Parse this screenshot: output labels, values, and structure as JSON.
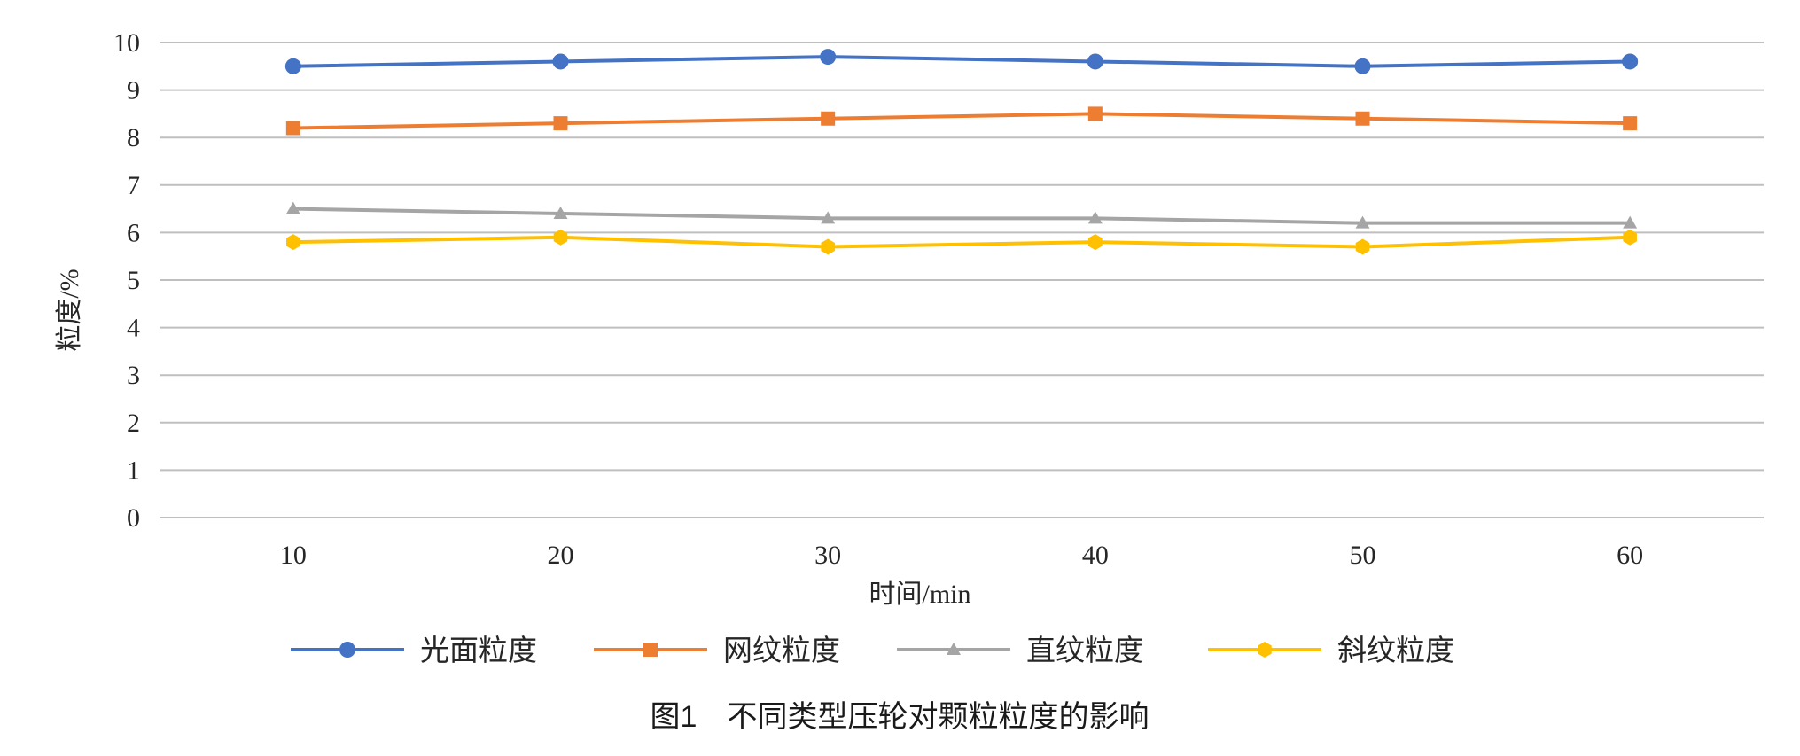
{
  "chart_data": {
    "type": "line",
    "title": "",
    "caption": "图1　不同类型压轮对颗粒粒度的影响",
    "xlabel": "时间/min",
    "ylabel": "粒度/%",
    "x": [
      10,
      20,
      30,
      40,
      50,
      60
    ],
    "x_tick_labels": [
      "10",
      "20",
      "30",
      "40",
      "50",
      "60"
    ],
    "ylim": [
      0,
      10
    ],
    "y_tick_labels": [
      "0",
      "1",
      "2",
      "3",
      "4",
      "5",
      "6",
      "7",
      "8",
      "9",
      "10"
    ],
    "grid": "horizontal",
    "legend_position": "bottom",
    "series": [
      {
        "name": "光面粒度",
        "values": [
          9.5,
          9.6,
          9.7,
          9.6,
          9.5,
          9.6
        ],
        "color": "#4472C4",
        "marker": "circle"
      },
      {
        "name": "网纹粒度",
        "values": [
          8.2,
          8.3,
          8.4,
          8.5,
          8.4,
          8.3
        ],
        "color": "#ED7D31",
        "marker": "square"
      },
      {
        "name": "直纹粒度",
        "values": [
          6.5,
          6.4,
          6.3,
          6.3,
          6.2,
          6.2
        ],
        "color": "#A5A5A5",
        "marker": "triangle"
      },
      {
        "name": "斜纹粒度",
        "values": [
          5.8,
          5.9,
          5.7,
          5.8,
          5.7,
          5.9
        ],
        "color": "#FFC000",
        "marker": "hexagon"
      }
    ]
  }
}
